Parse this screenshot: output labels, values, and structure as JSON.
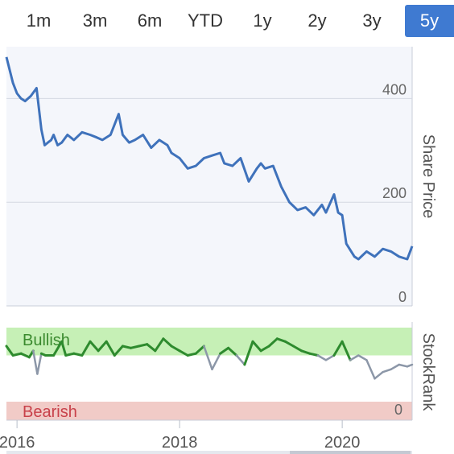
{
  "periods": {
    "tabs": [
      {
        "label": "1m"
      },
      {
        "label": "3m"
      },
      {
        "label": "6m"
      },
      {
        "label": "YTD"
      },
      {
        "label": "1y"
      },
      {
        "label": "2y"
      },
      {
        "label": "3y"
      },
      {
        "label": "5y"
      }
    ],
    "active": "5y"
  },
  "colors": {
    "price_line": "#3f72bb",
    "bullish_band": "#c6f0b6",
    "bearish_band": "#f1cbc7",
    "bullish_text": "#3a8a2e",
    "bearish_text": "#c8414a",
    "rank_bull_line": "#2e8b2e",
    "rank_neutral_line": "#8c97a8",
    "plot_bg": "#f4f6fb",
    "active_tab": "#3f7ad1"
  },
  "chart_data": [
    {
      "type": "line",
      "name": "price",
      "ylabel": "Share Price",
      "ylim": [
        0,
        500
      ],
      "yticks": [
        "0",
        "200",
        "400"
      ],
      "xticks": [
        "2016",
        "2018",
        "2020"
      ],
      "xlim": [
        "2015-11",
        "2020-11"
      ],
      "x": [
        2015.87,
        2015.95,
        2016.0,
        2016.05,
        2016.1,
        2016.17,
        2016.24,
        2016.3,
        2016.34,
        2016.38,
        2016.42,
        2016.45,
        2016.5,
        2016.55,
        2016.62,
        2016.7,
        2016.8,
        2016.9,
        2016.98,
        2017.05,
        2017.15,
        2017.25,
        2017.3,
        2017.38,
        2017.45,
        2017.55,
        2017.65,
        2017.75,
        2017.85,
        2017.9,
        2018.0,
        2018.1,
        2018.2,
        2018.3,
        2018.4,
        2018.5,
        2018.55,
        2018.65,
        2018.75,
        2018.85,
        2018.95,
        2019.0,
        2019.05,
        2019.15,
        2019.25,
        2019.35,
        2019.45,
        2019.55,
        2019.65,
        2019.75,
        2019.8,
        2019.9,
        2019.95,
        2020.0,
        2020.05,
        2020.15,
        2020.2,
        2020.3,
        2020.4,
        2020.5,
        2020.6,
        2020.7,
        2020.8,
        2020.86
      ],
      "values": [
        480,
        430,
        410,
        400,
        395,
        405,
        420,
        340,
        310,
        315,
        320,
        330,
        310,
        315,
        330,
        320,
        335,
        330,
        325,
        320,
        330,
        370,
        330,
        315,
        320,
        330,
        305,
        320,
        310,
        295,
        285,
        265,
        270,
        285,
        290,
        295,
        275,
        270,
        285,
        240,
        265,
        275,
        265,
        270,
        230,
        200,
        185,
        190,
        175,
        195,
        180,
        215,
        180,
        175,
        120,
        95,
        90,
        105,
        95,
        110,
        105,
        95,
        90,
        115
      ]
    },
    {
      "type": "line",
      "name": "stockrank",
      "ylabel": "StockRank",
      "ylim": [
        0,
        100
      ],
      "yticks": [
        "0"
      ],
      "bands": [
        {
          "label": "Bullish",
          "from": 70,
          "to": 100
        },
        {
          "label": "Bearish",
          "from": 0,
          "to": 20
        }
      ],
      "x": [
        2015.87,
        2015.95,
        2016.05,
        2016.15,
        2016.2,
        2016.25,
        2016.3,
        2016.35,
        2016.45,
        2016.55,
        2016.6,
        2016.7,
        2016.8,
        2016.9,
        2017.0,
        2017.1,
        2017.2,
        2017.3,
        2017.4,
        2017.5,
        2017.6,
        2017.7,
        2017.8,
        2017.9,
        2018.0,
        2018.1,
        2018.2,
        2018.3,
        2018.4,
        2018.5,
        2018.6,
        2018.7,
        2018.8,
        2018.9,
        2019.0,
        2019.1,
        2019.2,
        2019.3,
        2019.4,
        2019.5,
        2019.6,
        2019.7,
        2019.8,
        2019.9,
        2020.0,
        2020.1,
        2020.2,
        2020.3,
        2020.4,
        2020.5,
        2020.6,
        2020.7,
        2020.8,
        2020.86
      ],
      "values": [
        80,
        70,
        72,
        68,
        75,
        50,
        72,
        70,
        70,
        85,
        70,
        72,
        70,
        85,
        75,
        85,
        70,
        80,
        78,
        80,
        82,
        75,
        88,
        80,
        75,
        70,
        72,
        80,
        55,
        72,
        78,
        70,
        60,
        85,
        75,
        80,
        88,
        85,
        80,
        75,
        72,
        70,
        65,
        70,
        85,
        65,
        70,
        65,
        45,
        52,
        55,
        60,
        58,
        60
      ]
    }
  ]
}
